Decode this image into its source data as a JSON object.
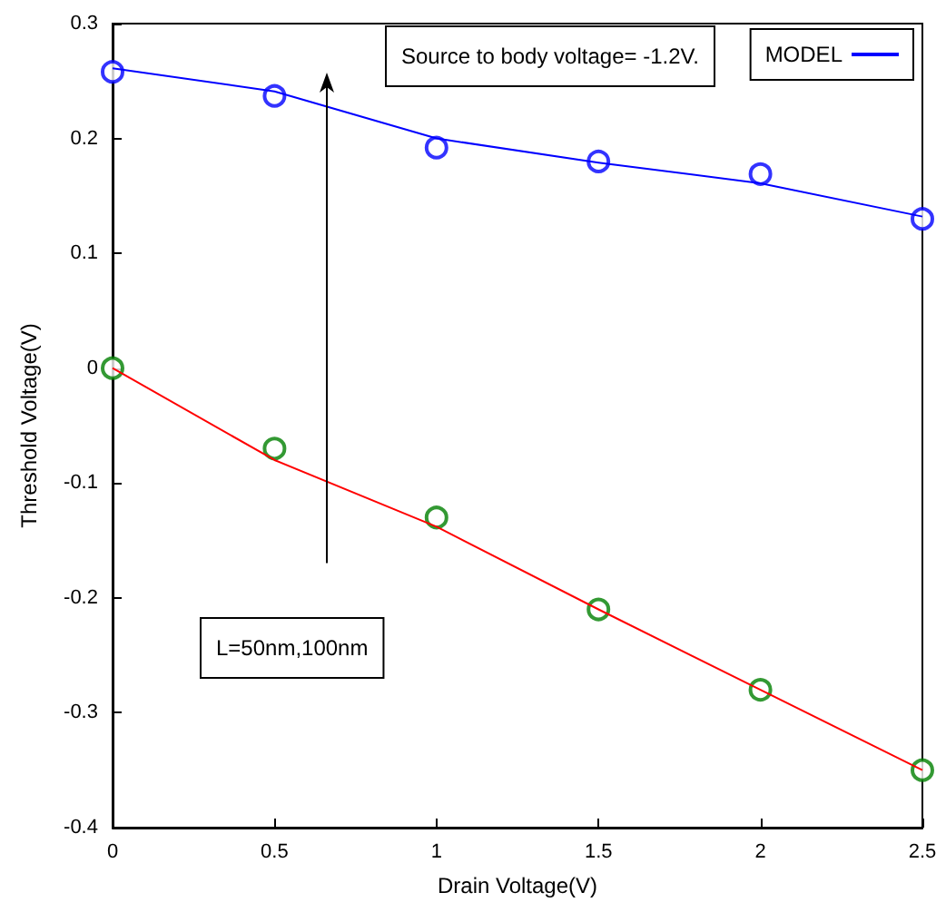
{
  "chart_data": {
    "type": "line",
    "xlabel": "Drain Voltage(V)",
    "ylabel": "Threshold Voltage(V)",
    "annotations": [
      "Source to body voltage= -1.2V.",
      "L=50nm,100nm"
    ],
    "x": [
      0,
      0.5,
      1,
      1.5,
      2,
      2.5
    ],
    "series": [
      {
        "type": "scatter",
        "marker": "circle",
        "color": "#0000ff",
        "values": [
          0.258,
          0.237,
          0.192,
          0.18,
          0.169,
          0.13
        ]
      },
      {
        "marker": "none",
        "name": "MODEL",
        "color": "#0000ff",
        "values": [
          0.261,
          0.241,
          0.2,
          0.179,
          0.161,
          0.132
        ]
      },
      {
        "type": "scatter",
        "marker": "circle",
        "color": "#008000",
        "values": [
          0,
          -0.07,
          -0.13,
          -0.21,
          -0.28,
          -0.35
        ]
      },
      {
        "marker": "none",
        "color": "#ff0000",
        "values": [
          0,
          -0.08,
          -0.138,
          -0.21,
          -0.28,
          -0.35
        ]
      }
    ],
    "xlim": [
      0,
      2.5
    ],
    "xticks": [
      0,
      0.5,
      1,
      1.5,
      2,
      2.5
    ],
    "ylim": [
      -0.4,
      0.3
    ],
    "yticks": [
      -0.4,
      -0.3,
      -0.2,
      -0.1,
      0,
      0.1,
      0.2,
      0.3
    ],
    "grid": false,
    "legend": "top right"
  }
}
